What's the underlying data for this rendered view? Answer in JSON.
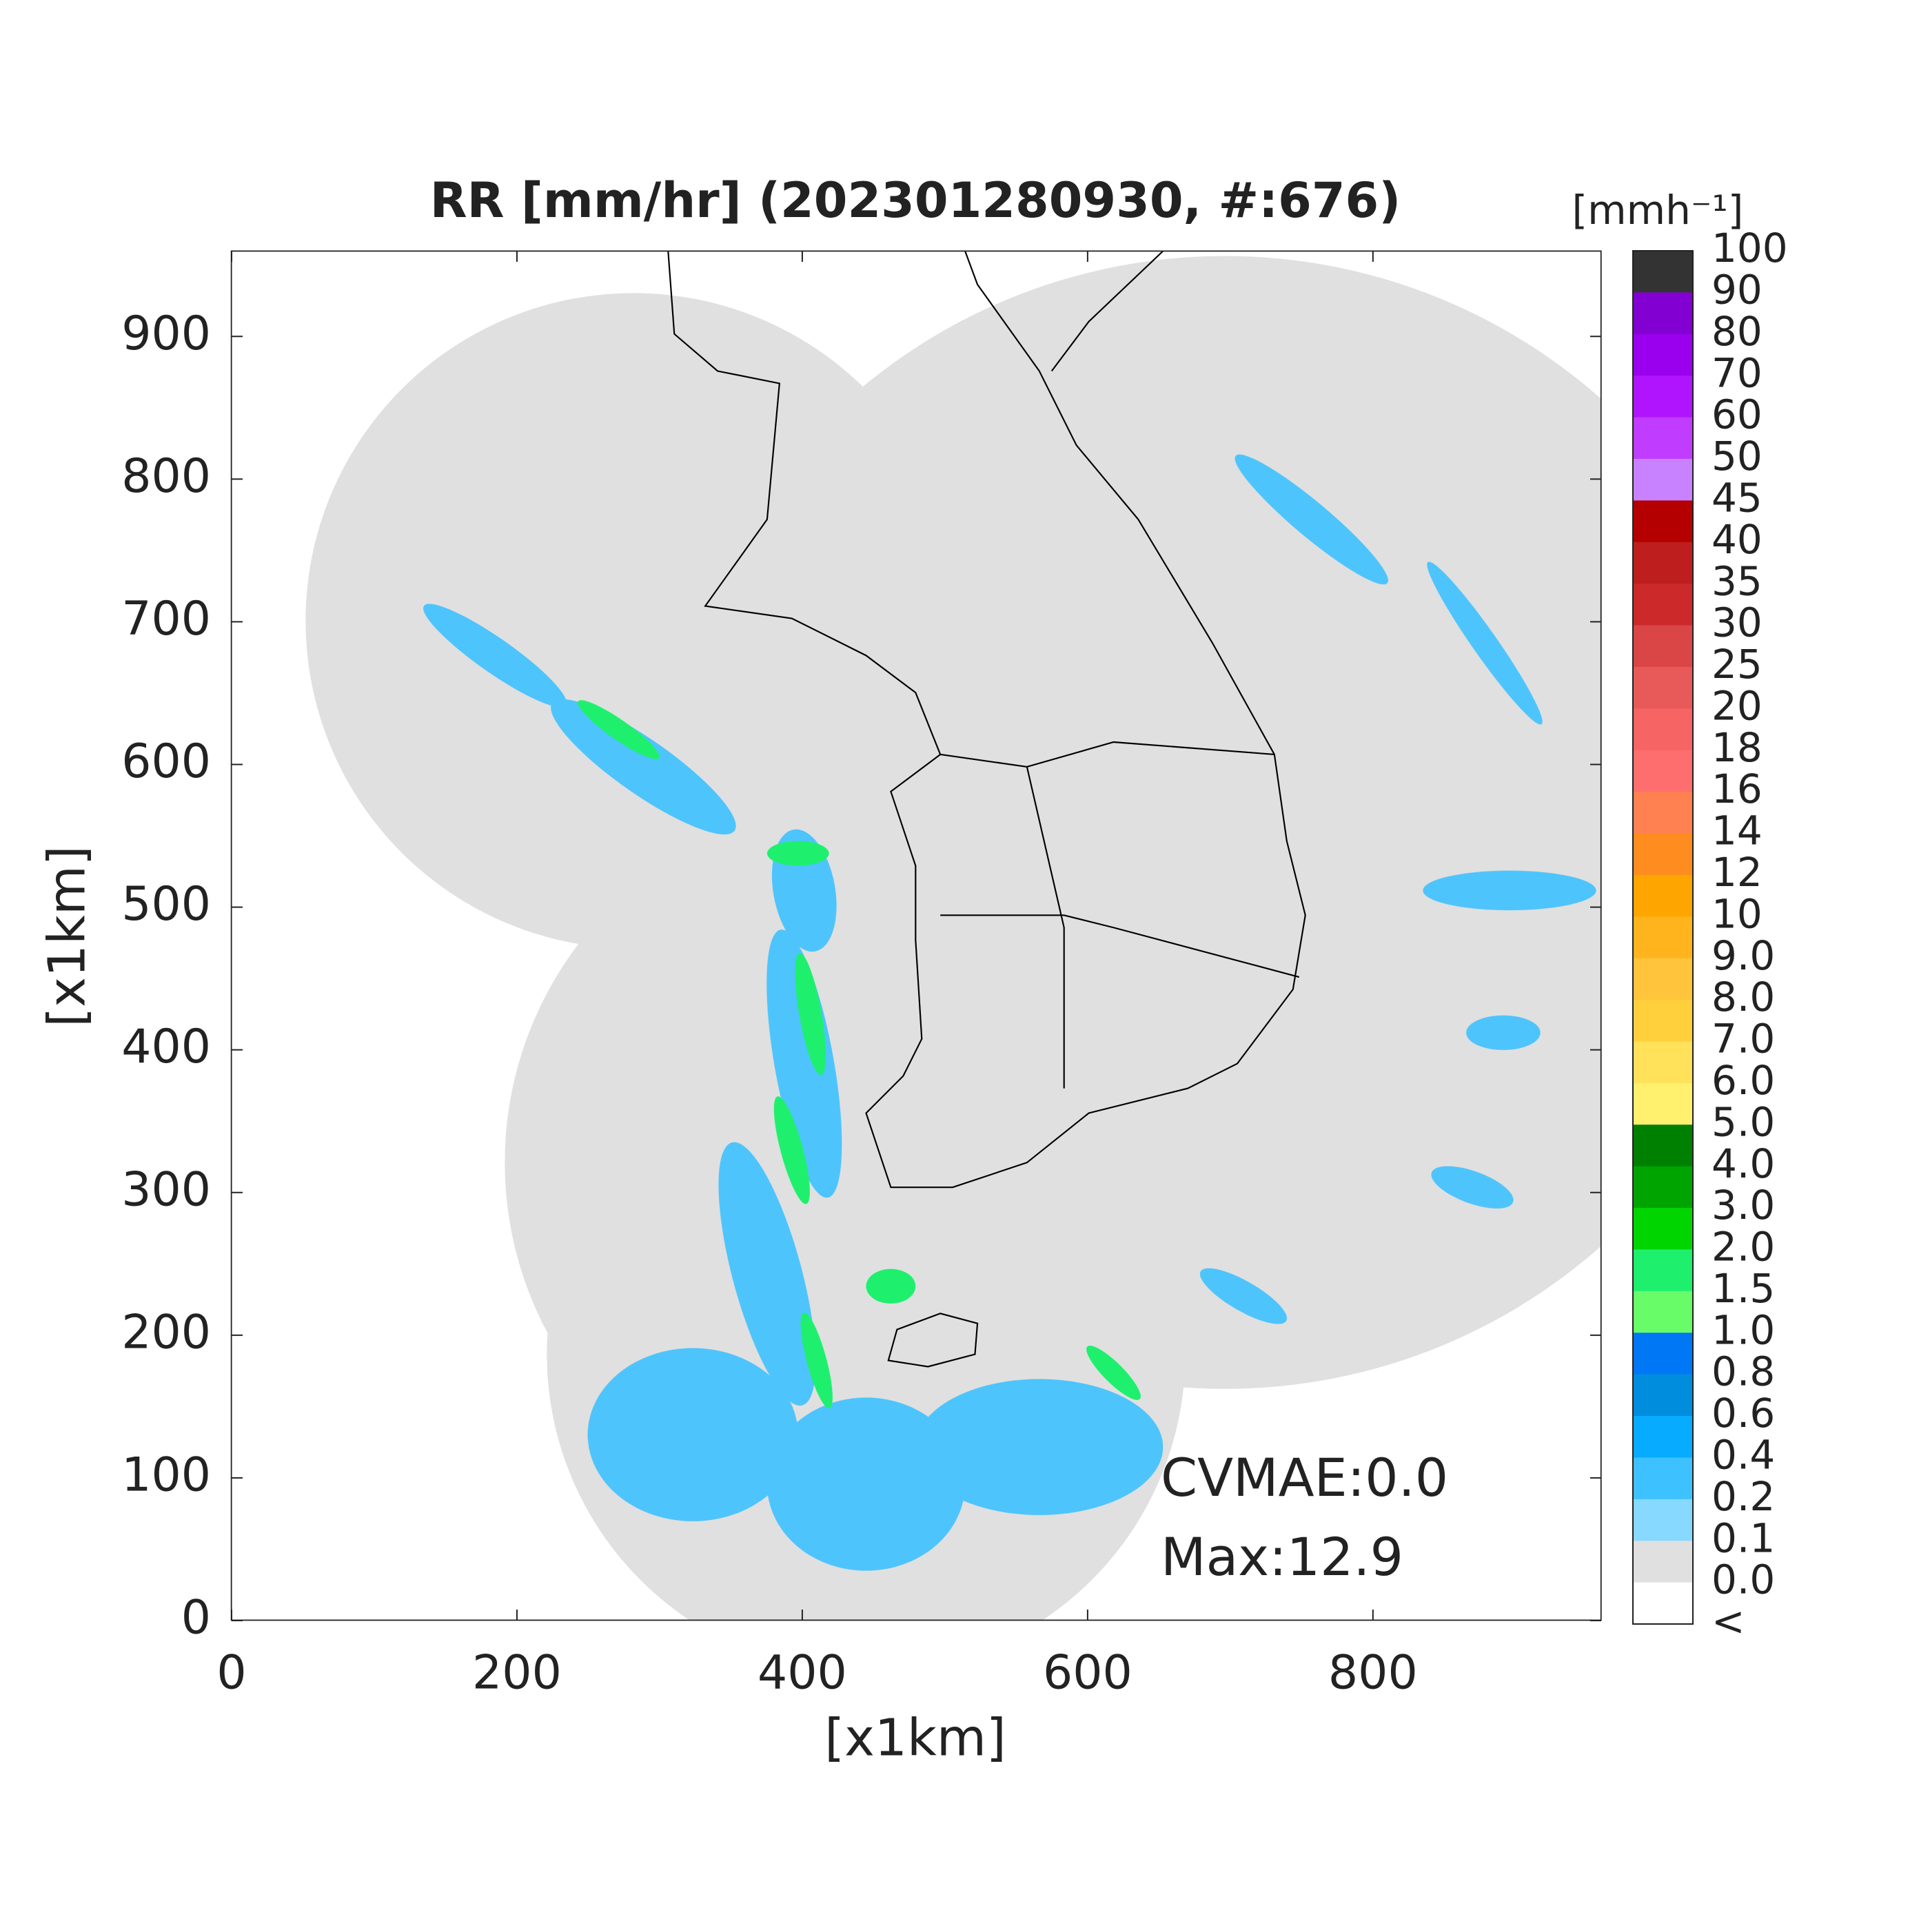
{
  "chart_data": {
    "type": "heatmap",
    "title": "RR [mm/hr] (202301280930, #:676)",
    "xlabel": "[x1km]",
    "ylabel": "[x1km]",
    "xlim": [
      0,
      960
    ],
    "ylim": [
      0,
      960
    ],
    "xticks": [
      0,
      200,
      400,
      600,
      800
    ],
    "yticks": [
      0,
      100,
      200,
      300,
      400,
      500,
      600,
      700,
      800,
      900
    ],
    "colorbar": {
      "title": "[mmh⁻¹]",
      "labels": [
        "100",
        "90",
        "80",
        "70",
        "60",
        "50",
        "45",
        "40",
        "35",
        "30",
        "25",
        "20",
        "18",
        "16",
        "14",
        "12",
        "10",
        "9.0",
        "8.0",
        "7.0",
        "6.0",
        "5.0",
        "4.0",
        "3.0",
        "2.0",
        "1.5",
        "1.0",
        "0.8",
        "0.6",
        "0.4",
        "0.2",
        "0.1",
        "0.0",
        "<"
      ],
      "colors": [
        "#333333",
        "#8200d2",
        "#9a00ee",
        "#b014ff",
        "#c03cff",
        "#c882ff",
        "#b40000",
        "#be1e1e",
        "#cc2a2a",
        "#da4646",
        "#e85a5a",
        "#f66464",
        "#ff6e6e",
        "#ff8050",
        "#ff8c1e",
        "#ffa500",
        "#ffb41e",
        "#ffc43c",
        "#ffd03c",
        "#ffe15a",
        "#fff06e",
        "#008000",
        "#00a400",
        "#00d500",
        "#1ef06e",
        "#69fc69",
        "#0077f5",
        "#008dde",
        "#07abff",
        "#3ec1ff",
        "#87d9ff",
        "#e0e0e0",
        "#ffffff"
      ]
    },
    "annotations": [
      "CVMAE:0.0",
      "Max:12.9"
    ]
  }
}
